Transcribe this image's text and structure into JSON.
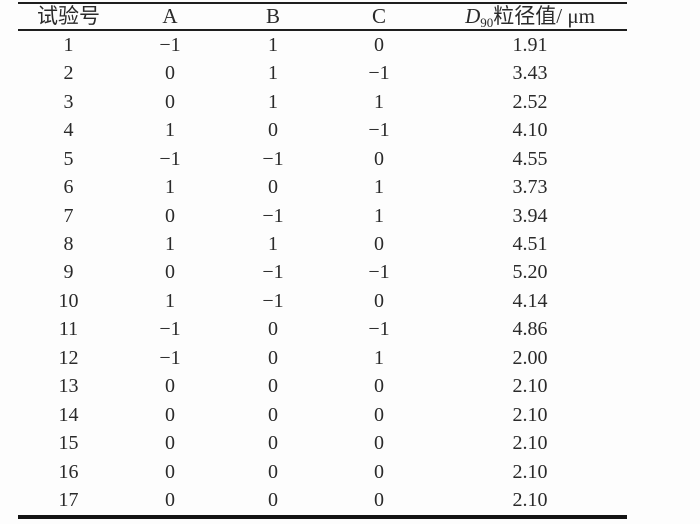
{
  "table": {
    "header": {
      "run": "试验号",
      "a": "A",
      "b": "B",
      "c": "C",
      "d90_symbol": "D",
      "d90_subscript": "90",
      "d90_rest": "粒径值/ μm"
    },
    "rows": [
      [
        "1",
        "−1",
        "1",
        "0",
        "1.91"
      ],
      [
        "2",
        "0",
        "1",
        "−1",
        "3.43"
      ],
      [
        "3",
        "0",
        "1",
        "1",
        "2.52"
      ],
      [
        "4",
        "1",
        "0",
        "−1",
        "4.10"
      ],
      [
        "5",
        "−1",
        "−1",
        "0",
        "4.55"
      ],
      [
        "6",
        "1",
        "0",
        "1",
        "3.73"
      ],
      [
        "7",
        "0",
        "−1",
        "1",
        "3.94"
      ],
      [
        "8",
        "1",
        "1",
        "0",
        "4.51"
      ],
      [
        "9",
        "0",
        "−1",
        "−1",
        "5.20"
      ],
      [
        "10",
        "1",
        "−1",
        "0",
        "4.14"
      ],
      [
        "11",
        "−1",
        "0",
        "−1",
        "4.86"
      ],
      [
        "12",
        "−1",
        "0",
        "1",
        "2.00"
      ],
      [
        "13",
        "0",
        "0",
        "0",
        "2.10"
      ],
      [
        "14",
        "0",
        "0",
        "0",
        "2.10"
      ],
      [
        "15",
        "0",
        "0",
        "0",
        "2.10"
      ],
      [
        "16",
        "0",
        "0",
        "0",
        "2.10"
      ],
      [
        "17",
        "0",
        "0",
        "0",
        "2.10"
      ]
    ]
  },
  "chart_data": {
    "type": "table",
    "columns": [
      "试验号",
      "A",
      "B",
      "C",
      "D90粒径值/μm"
    ],
    "rows": [
      [
        1,
        -1,
        1,
        0,
        1.91
      ],
      [
        2,
        0,
        1,
        -1,
        3.43
      ],
      [
        3,
        0,
        1,
        1,
        2.52
      ],
      [
        4,
        1,
        0,
        -1,
        4.1
      ],
      [
        5,
        -1,
        -1,
        0,
        4.55
      ],
      [
        6,
        1,
        0,
        1,
        3.73
      ],
      [
        7,
        0,
        -1,
        1,
        3.94
      ],
      [
        8,
        1,
        1,
        0,
        4.51
      ],
      [
        9,
        0,
        -1,
        -1,
        5.2
      ],
      [
        10,
        1,
        -1,
        0,
        4.14
      ],
      [
        11,
        -1,
        0,
        -1,
        4.86
      ],
      [
        12,
        -1,
        0,
        1,
        2.0
      ],
      [
        13,
        0,
        0,
        0,
        2.1
      ],
      [
        14,
        0,
        0,
        0,
        2.1
      ],
      [
        15,
        0,
        0,
        0,
        2.1
      ],
      [
        16,
        0,
        0,
        0,
        2.1
      ],
      [
        17,
        0,
        0,
        0,
        2.1
      ]
    ]
  },
  "colors": {
    "text": "#2a2a2a",
    "rule": "#1e1e1e",
    "background": "#fdfdfd"
  }
}
